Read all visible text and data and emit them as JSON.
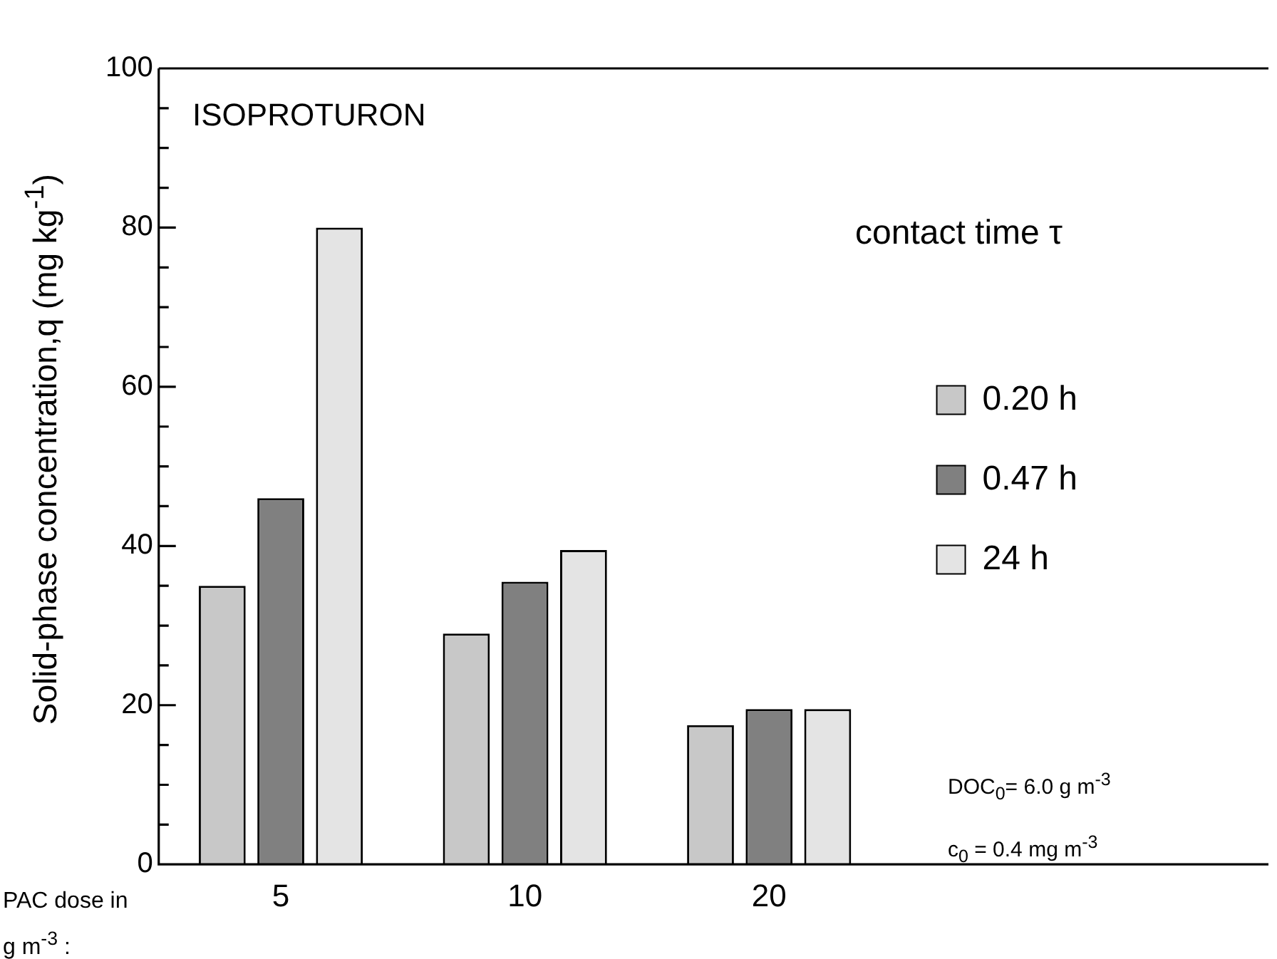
{
  "chart_data": {
    "type": "bar",
    "title": "ISOPROTURON",
    "xlabel": "PAC dose in g m$^{-3}$ :",
    "ylabel": "Solid-phase concentration,q (mg kg$^{-1}$)",
    "legend_title": "contact time τ",
    "categories": [
      "5",
      "10",
      "20"
    ],
    "series": [
      {
        "name": "0.20 h",
        "color": "#c8c8c8",
        "values": [
          35,
          29,
          17.5
        ]
      },
      {
        "name": "0.47 h",
        "color": "#808080",
        "values": [
          46,
          35.5,
          19.5
        ]
      },
      {
        "name": "24 h",
        "color": "#e4e4e4",
        "values": [
          80,
          39.5,
          19.5
        ]
      }
    ],
    "ylim": [
      0,
      100
    ],
    "yticks": [
      0,
      {
        "value": 5,
        "label": null
      },
      {
        "value": 10,
        "label": null
      },
      {
        "value": 15,
        "label": null
      },
      20,
      {
        "value": 25,
        "label": null
      },
      {
        "value": 30,
        "label": null
      },
      {
        "value": 35,
        "label": null
      },
      40,
      {
        "value": 45,
        "label": null
      },
      {
        "value": 50,
        "label": null
      },
      {
        "value": 55,
        "label": null
      },
      60,
      {
        "value": 65,
        "label": null
      },
      {
        "value": 70,
        "label": null
      },
      {
        "value": 75,
        "label": null
      },
      80,
      {
        "value": 85,
        "label": null
      },
      {
        "value": 90,
        "label": null
      },
      {
        "value": 95,
        "label": null
      },
      100
    ],
    "legend": "right",
    "grid": false,
    "annotations": [
      "DOC$_{0}$= 6.0 g m$^{-3}$",
      "c$_{0}$ = 0.4 mg m$^{-3}$"
    ]
  }
}
